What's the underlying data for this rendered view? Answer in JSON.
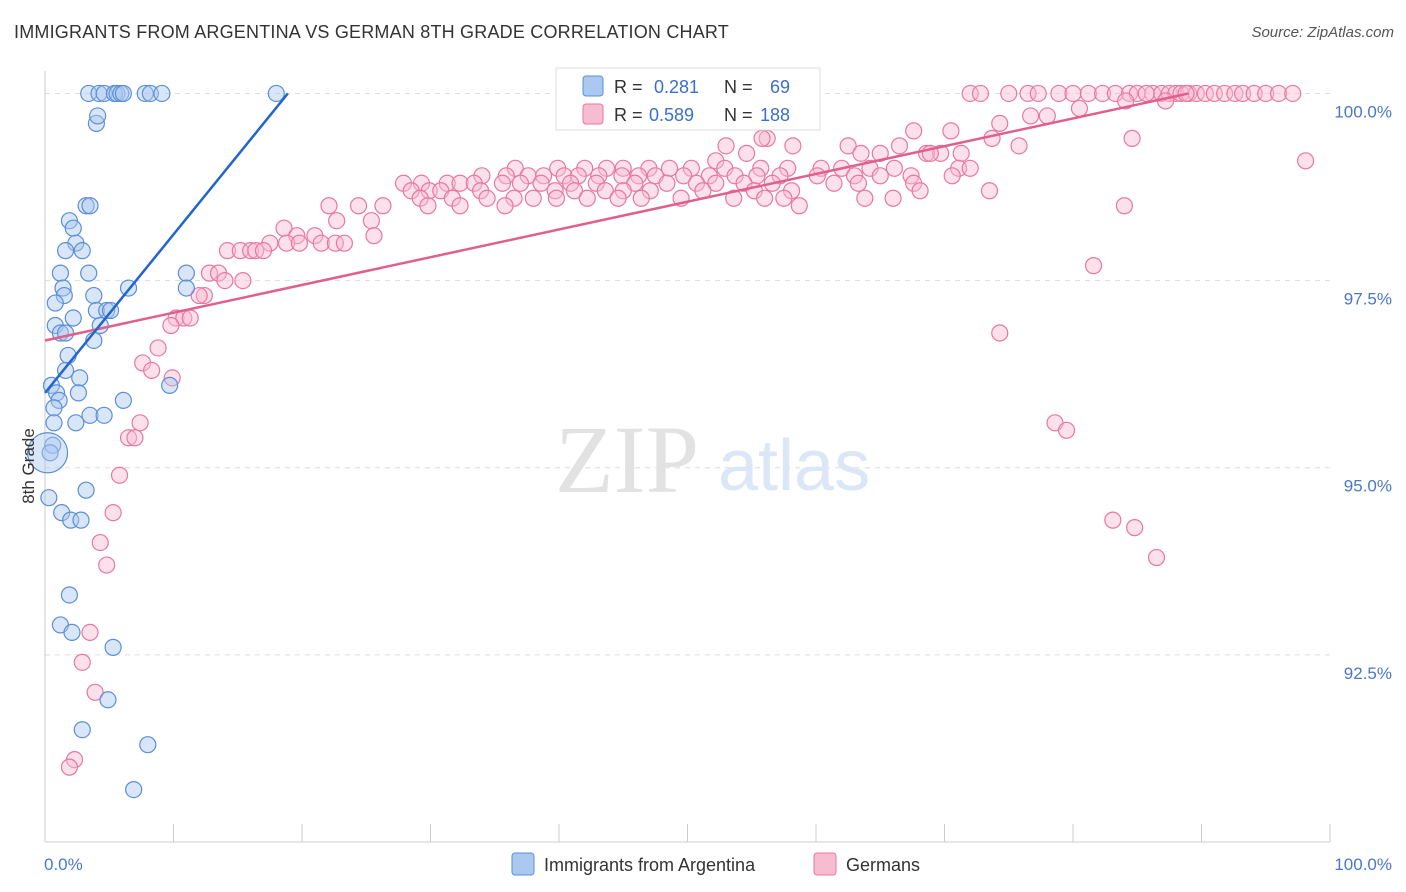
{
  "title": "IMMIGRANTS FROM ARGENTINA VS GERMAN 8TH GRADE CORRELATION CHART",
  "source": "Source: ZipAtlas.com",
  "watermark": {
    "zip": "ZIP",
    "atlas": "atlas"
  },
  "colors": {
    "blue_fill": "#aac8f0",
    "blue_stroke": "#5b8fd8",
    "blue_line": "#2266cc",
    "pink_fill": "#f8bcd0",
    "pink_stroke": "#e8789e",
    "pink_line": "#e0608a",
    "tick_text": "#4a78c8",
    "grid": "#dddddd"
  },
  "legend": {
    "r_label": "R =",
    "n_label": "N =",
    "series": [
      {
        "r": "0.281",
        "n": "69"
      },
      {
        "r": "0.589",
        "n": "188"
      }
    ]
  },
  "chart_data": {
    "type": "scatter",
    "xlabel": "",
    "ylabel": "8th Grade",
    "xlim": [
      0,
      100
    ],
    "ylim": [
      90.0,
      100.3
    ],
    "x_tick_labels": [
      {
        "value": 0,
        "label": "0.0%"
      },
      {
        "value": 100,
        "label": "100.0%"
      }
    ],
    "y_tick_labels": [
      {
        "value": 100.0,
        "label": "100.0%"
      },
      {
        "value": 97.5,
        "label": "97.5%"
      },
      {
        "value": 95.0,
        "label": "95.0%"
      },
      {
        "value": 92.5,
        "label": "92.5%"
      }
    ],
    "grid": true,
    "legend_position": "top-center",
    "series": [
      {
        "name": "Immigrants from Argentina",
        "trend": [
          [
            0.0,
            96.0
          ],
          [
            18.9,
            100.0
          ]
        ],
        "points": [
          [
            3.4,
            100
          ],
          [
            4.2,
            100
          ],
          [
            4.6,
            100
          ],
          [
            5.4,
            100
          ],
          [
            5.6,
            100
          ],
          [
            5.9,
            100
          ],
          [
            6.1,
            100
          ],
          [
            7.8,
            100
          ],
          [
            8.2,
            100
          ],
          [
            9.1,
            100
          ],
          [
            18.0,
            100
          ],
          [
            4.0,
            99.6
          ],
          [
            4.1,
            99.7
          ],
          [
            3.2,
            98.5
          ],
          [
            3.5,
            98.5
          ],
          [
            1.9,
            98.3
          ],
          [
            2.2,
            98.2
          ],
          [
            2.4,
            98.0
          ],
          [
            1.6,
            97.9
          ],
          [
            2.9,
            97.9
          ],
          [
            1.2,
            97.6
          ],
          [
            3.4,
            97.6
          ],
          [
            1.4,
            97.4
          ],
          [
            1.5,
            97.3
          ],
          [
            6.5,
            97.4
          ],
          [
            11.0,
            97.6
          ],
          [
            11.0,
            97.4
          ],
          [
            0.8,
            97.2
          ],
          [
            3.8,
            97.3
          ],
          [
            4.0,
            97.1
          ],
          [
            4.8,
            97.1
          ],
          [
            5.1,
            97.1
          ],
          [
            2.2,
            97.0
          ],
          [
            0.8,
            96.9
          ],
          [
            1.2,
            96.8
          ],
          [
            4.3,
            96.9
          ],
          [
            1.6,
            96.8
          ],
          [
            3.8,
            96.7
          ],
          [
            1.8,
            96.5
          ],
          [
            1.6,
            96.3
          ],
          [
            2.7,
            96.2
          ],
          [
            0.5,
            96.1
          ],
          [
            0.9,
            96.0
          ],
          [
            2.6,
            96.0
          ],
          [
            9.7,
            96.1
          ],
          [
            1.1,
            95.9
          ],
          [
            6.1,
            95.9
          ],
          [
            0.7,
            95.8
          ],
          [
            3.5,
            95.7
          ],
          [
            4.6,
            95.7
          ],
          [
            0.7,
            95.6
          ],
          [
            2.4,
            95.6
          ],
          [
            0.6,
            95.3
          ],
          [
            0.4,
            95.2
          ],
          [
            0.3,
            94.6
          ],
          [
            3.2,
            94.7
          ],
          [
            1.3,
            94.4
          ],
          [
            2.0,
            94.3
          ],
          [
            2.8,
            94.3
          ],
          [
            1.9,
            93.3
          ],
          [
            1.2,
            92.9
          ],
          [
            2.1,
            92.8
          ],
          [
            5.3,
            92.6
          ],
          [
            4.9,
            91.9
          ],
          [
            2.9,
            91.5
          ],
          [
            8.0,
            91.3
          ],
          [
            6.9,
            90.7
          ]
        ]
      },
      {
        "name": "Germans",
        "trend": [
          [
            0.0,
            96.7
          ],
          [
            89.0,
            100.0
          ]
        ],
        "points": [
          [
            72.0,
            100
          ],
          [
            72.8,
            100
          ],
          [
            75.0,
            100
          ],
          [
            76.5,
            100
          ],
          [
            77.3,
            100
          ],
          [
            78.9,
            100
          ],
          [
            80.0,
            100
          ],
          [
            81.2,
            100
          ],
          [
            82.3,
            100
          ],
          [
            83.3,
            100
          ],
          [
            84.4,
            100
          ],
          [
            85.0,
            100
          ],
          [
            86.2,
            100
          ],
          [
            86.9,
            100
          ],
          [
            87.5,
            100
          ],
          [
            88.0,
            100
          ],
          [
            88.4,
            100
          ],
          [
            89.0,
            100
          ],
          [
            89.6,
            100
          ],
          [
            90.3,
            100
          ],
          [
            91.0,
            100
          ],
          [
            91.8,
            100
          ],
          [
            92.6,
            100
          ],
          [
            93.2,
            100
          ],
          [
            94.1,
            100
          ],
          [
            95.0,
            100
          ],
          [
            96.0,
            100
          ],
          [
            97.1,
            100
          ],
          [
            85.7,
            100
          ],
          [
            88.8,
            100
          ],
          [
            84.1,
            99.9
          ],
          [
            87.2,
            99.9
          ],
          [
            80.5,
            99.8
          ],
          [
            76.7,
            99.7
          ],
          [
            78.0,
            99.7
          ],
          [
            74.3,
            99.6
          ],
          [
            67.6,
            99.5
          ],
          [
            70.5,
            99.5
          ],
          [
            73.7,
            99.4
          ],
          [
            84.6,
            99.4
          ],
          [
            56.2,
            99.4
          ],
          [
            55.8,
            99.4
          ],
          [
            53.0,
            99.3
          ],
          [
            58.2,
            99.3
          ],
          [
            62.5,
            99.3
          ],
          [
            66.5,
            99.3
          ],
          [
            75.8,
            99.3
          ],
          [
            68.6,
            99.2
          ],
          [
            69.7,
            99.2
          ],
          [
            71.3,
            99.2
          ],
          [
            52.2,
            99.1
          ],
          [
            54.6,
            99.2
          ],
          [
            63.5,
            99.2
          ],
          [
            65.0,
            99.2
          ],
          [
            68.9,
            99.2
          ],
          [
            98.1,
            99.1
          ],
          [
            36.6,
            99.0
          ],
          [
            39.9,
            99.0
          ],
          [
            42.0,
            99.0
          ],
          [
            43.7,
            99.0
          ],
          [
            45.0,
            99.0
          ],
          [
            47.0,
            99.0
          ],
          [
            48.6,
            99.0
          ],
          [
            50.3,
            99.0
          ],
          [
            52.9,
            99.0
          ],
          [
            55.7,
            99.0
          ],
          [
            57.8,
            99.0
          ],
          [
            60.4,
            99.0
          ],
          [
            62.0,
            99.0
          ],
          [
            64.2,
            99.0
          ],
          [
            66.1,
            99.0
          ],
          [
            71.1,
            99.0
          ],
          [
            72.0,
            99.0
          ],
          [
            34.0,
            98.9
          ],
          [
            35.9,
            98.9
          ],
          [
            37.6,
            98.9
          ],
          [
            38.8,
            98.9
          ],
          [
            40.4,
            98.9
          ],
          [
            41.5,
            98.9
          ],
          [
            43.1,
            98.9
          ],
          [
            44.9,
            98.9
          ],
          [
            46.2,
            98.9
          ],
          [
            47.5,
            98.9
          ],
          [
            49.7,
            98.9
          ],
          [
            51.7,
            98.9
          ],
          [
            53.7,
            98.9
          ],
          [
            55.4,
            98.9
          ],
          [
            57.2,
            98.9
          ],
          [
            60.1,
            98.9
          ],
          [
            63.0,
            98.9
          ],
          [
            65.0,
            98.9
          ],
          [
            67.4,
            98.9
          ],
          [
            70.6,
            98.9
          ],
          [
            27.9,
            98.8
          ],
          [
            29.3,
            98.8
          ],
          [
            31.3,
            98.8
          ],
          [
            32.3,
            98.8
          ],
          [
            33.4,
            98.8
          ],
          [
            35.6,
            98.8
          ],
          [
            37.0,
            98.8
          ],
          [
            38.6,
            98.8
          ],
          [
            40.9,
            98.8
          ],
          [
            42.9,
            98.8
          ],
          [
            45.9,
            98.8
          ],
          [
            48.4,
            98.8
          ],
          [
            50.7,
            98.8
          ],
          [
            52.2,
            98.8
          ],
          [
            54.4,
            98.8
          ],
          [
            56.6,
            98.8
          ],
          [
            61.4,
            98.8
          ],
          [
            63.3,
            98.8
          ],
          [
            67.6,
            98.8
          ],
          [
            28.5,
            98.7
          ],
          [
            29.9,
            98.7
          ],
          [
            30.8,
            98.7
          ],
          [
            33.9,
            98.7
          ],
          [
            39.7,
            98.7
          ],
          [
            41.2,
            98.7
          ],
          [
            43.6,
            98.7
          ],
          [
            45.0,
            98.7
          ],
          [
            47.1,
            98.7
          ],
          [
            51.2,
            98.7
          ],
          [
            55.2,
            98.7
          ],
          [
            58.1,
            98.7
          ],
          [
            73.5,
            98.7
          ],
          [
            68.1,
            98.7
          ],
          [
            29.2,
            98.6
          ],
          [
            31.7,
            98.6
          ],
          [
            34.4,
            98.6
          ],
          [
            36.5,
            98.6
          ],
          [
            38.0,
            98.6
          ],
          [
            39.8,
            98.6
          ],
          [
            42.2,
            98.6
          ],
          [
            44.6,
            98.6
          ],
          [
            46.4,
            98.6
          ],
          [
            49.5,
            98.6
          ],
          [
            53.6,
            98.6
          ],
          [
            56.0,
            98.6
          ],
          [
            57.5,
            98.6
          ],
          [
            63.8,
            98.6
          ],
          [
            66.0,
            98.6
          ],
          [
            22.1,
            98.5
          ],
          [
            24.4,
            98.5
          ],
          [
            26.3,
            98.5
          ],
          [
            29.8,
            98.5
          ],
          [
            32.3,
            98.5
          ],
          [
            35.8,
            98.5
          ],
          [
            58.7,
            98.5
          ],
          [
            84.0,
            98.5
          ],
          [
            22.7,
            98.3
          ],
          [
            25.4,
            98.3
          ],
          [
            18.6,
            98.2
          ],
          [
            19.6,
            98.1
          ],
          [
            21.0,
            98.1
          ],
          [
            17.5,
            98.0
          ],
          [
            18.8,
            98.0
          ],
          [
            19.8,
            98.0
          ],
          [
            21.5,
            98.0
          ],
          [
            22.6,
            98.0
          ],
          [
            23.3,
            98.0
          ],
          [
            14.2,
            97.9
          ],
          [
            15.2,
            97.9
          ],
          [
            16.0,
            97.9
          ],
          [
            16.4,
            97.9
          ],
          [
            17.0,
            97.9
          ],
          [
            25.6,
            98.1
          ],
          [
            12.8,
            97.6
          ],
          [
            13.5,
            97.6
          ],
          [
            14.0,
            97.5
          ],
          [
            15.4,
            97.5
          ],
          [
            12.4,
            97.3
          ],
          [
            12.0,
            97.3
          ],
          [
            10.2,
            97.0
          ],
          [
            10.8,
            97.0
          ],
          [
            11.3,
            97.0
          ],
          [
            9.8,
            96.9
          ],
          [
            8.8,
            96.6
          ],
          [
            7.6,
            96.4
          ],
          [
            8.3,
            96.3
          ],
          [
            9.9,
            96.2
          ],
          [
            81.6,
            97.7
          ],
          [
            74.3,
            96.8
          ],
          [
            7.4,
            95.6
          ],
          [
            6.5,
            95.4
          ],
          [
            7.0,
            95.4
          ],
          [
            5.8,
            94.9
          ],
          [
            5.3,
            94.4
          ],
          [
            4.3,
            94.0
          ],
          [
            4.8,
            93.7
          ],
          [
            3.5,
            92.8
          ],
          [
            2.9,
            92.4
          ],
          [
            3.9,
            92.0
          ],
          [
            2.3,
            91.1
          ],
          [
            1.9,
            91.0
          ],
          [
            78.6,
            95.6
          ],
          [
            79.5,
            95.5
          ],
          [
            83.1,
            94.3
          ],
          [
            84.8,
            94.2
          ],
          [
            86.5,
            93.8
          ]
        ]
      }
    ]
  },
  "bottom_legend": [
    "Immigrants from Argentina",
    "Germans"
  ]
}
